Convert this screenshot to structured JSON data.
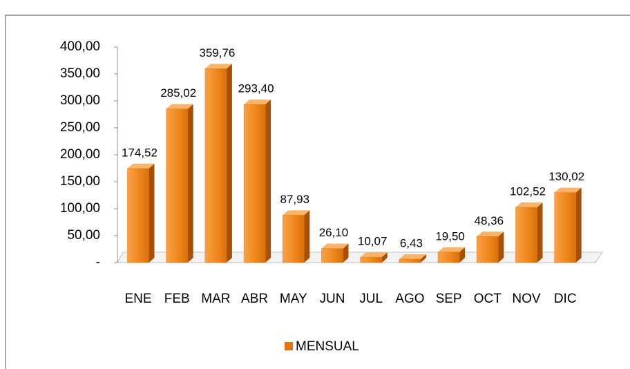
{
  "chart_data": {
    "type": "bar",
    "categories": [
      "ENE",
      "FEB",
      "MAR",
      "ABR",
      "MAY",
      "JUN",
      "JUL",
      "AGO",
      "SEP",
      "OCT",
      "NOV",
      "DIC"
    ],
    "series": [
      {
        "name": "MENSUAL",
        "color": "#e8740f",
        "values": [
          174.52,
          285.02,
          359.76,
          293.4,
          87.93,
          26.1,
          10.07,
          6.43,
          19.5,
          48.36,
          102.52,
          130.02
        ],
        "value_labels": [
          "174,52",
          "285,02",
          "359,76",
          "293,40",
          "87,93",
          "26,10",
          "10,07",
          "6,43",
          "19,50",
          "48,36",
          "102,52",
          "130,02"
        ]
      }
    ],
    "ylim": [
      0,
      400
    ],
    "yticks": [
      {
        "value": 0,
        "label": "-"
      },
      {
        "value": 50,
        "label": "50,00"
      },
      {
        "value": 100,
        "label": "100,00"
      },
      {
        "value": 150,
        "label": "150,00"
      },
      {
        "value": 200,
        "label": "200,00"
      },
      {
        "value": 250,
        "label": "250,00"
      },
      {
        "value": 300,
        "label": "300,00"
      },
      {
        "value": 350,
        "label": "350,00"
      },
      {
        "value": 400,
        "label": "400,00"
      }
    ],
    "legend": "bottom"
  }
}
